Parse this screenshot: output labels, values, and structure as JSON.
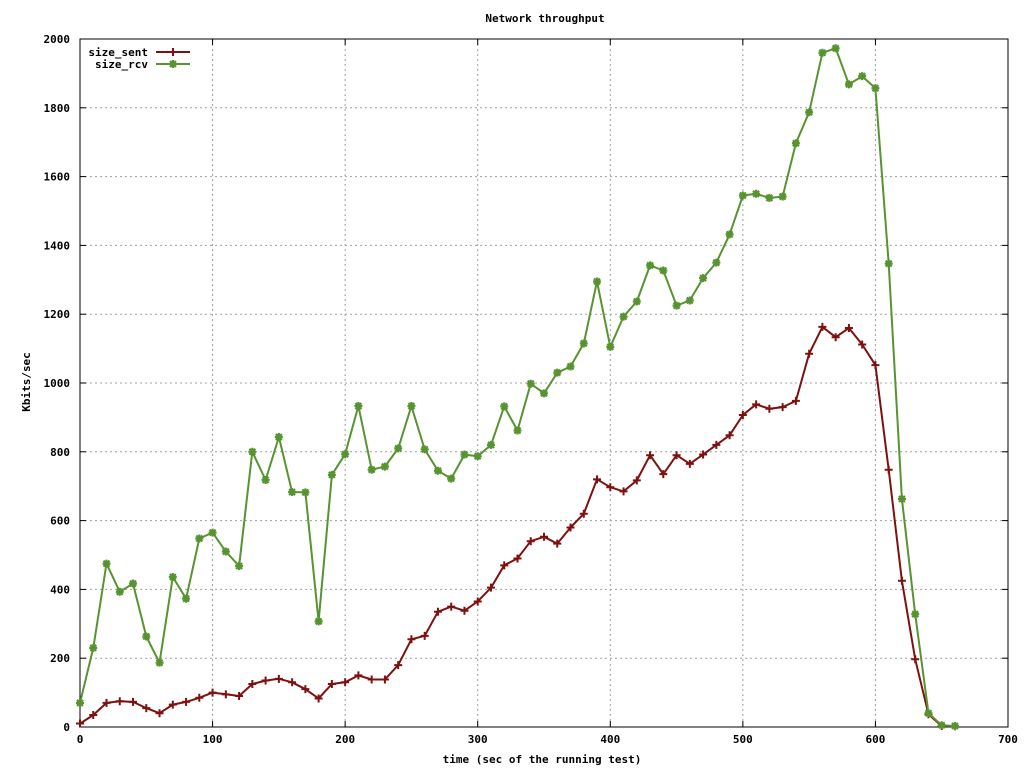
{
  "chart_data": {
    "type": "line",
    "title": "Network throughput",
    "xlabel": "time (sec of the running test)",
    "ylabel": "Kbits/sec",
    "xlim": [
      0,
      700
    ],
    "ylim": [
      0,
      2000
    ],
    "xticks": [
      "0",
      "100",
      "200",
      "300",
      "400",
      "500",
      "600",
      "700"
    ],
    "yticks": [
      "0",
      "200",
      "400",
      "600",
      "800",
      "1000",
      "1200",
      "1400",
      "1600",
      "1800",
      "2000"
    ],
    "grid": true,
    "legend_position": "top-left",
    "x": [
      0,
      10,
      20,
      30,
      40,
      50,
      60,
      70,
      80,
      90,
      100,
      110,
      120,
      130,
      140,
      150,
      160,
      170,
      180,
      190,
      200,
      210,
      220,
      230,
      240,
      250,
      260,
      270,
      280,
      290,
      300,
      310,
      320,
      330,
      340,
      350,
      360,
      370,
      380,
      390,
      400,
      410,
      420,
      430,
      440,
      450,
      460,
      470,
      480,
      490,
      500,
      510,
      520,
      530,
      540,
      550,
      560,
      570,
      580,
      590,
      600,
      610,
      620,
      630,
      640,
      650,
      660
    ],
    "series": [
      {
        "name": "size_sent",
        "color": "#7f1010",
        "marker": "plus",
        "values": [
          10,
          35,
          70,
          75,
          73,
          55,
          40,
          65,
          73,
          85,
          100,
          95,
          90,
          125,
          135,
          140,
          130,
          110,
          83,
          125,
          130,
          150,
          138,
          138,
          180,
          255,
          265,
          335,
          350,
          338,
          365,
          405,
          470,
          490,
          540,
          553,
          533,
          580,
          620,
          720,
          697,
          685,
          717,
          790,
          735,
          790,
          765,
          792,
          820,
          848,
          907,
          938,
          925,
          930,
          948,
          1085,
          1163,
          1133,
          1160,
          1112,
          1052,
          748,
          425,
          197,
          37,
          3,
          2
        ]
      },
      {
        "name": "size_rcv",
        "color": "#579431",
        "marker": "star",
        "values": [
          70,
          230,
          475,
          393,
          417,
          263,
          187,
          436,
          373,
          548,
          565,
          510,
          468,
          800,
          718,
          843,
          683,
          682,
          307,
          733,
          793,
          933,
          748,
          757,
          810,
          933,
          807,
          745,
          722,
          792,
          787,
          820,
          932,
          862,
          998,
          970,
          1030,
          1048,
          1115,
          1295,
          1105,
          1193,
          1237,
          1342,
          1327,
          1225,
          1240,
          1305,
          1350,
          1432,
          1545,
          1550,
          1538,
          1542,
          1697,
          1787,
          1960,
          1973,
          1868,
          1892,
          1857,
          1347,
          663,
          328,
          40,
          5,
          3
        ]
      }
    ]
  }
}
